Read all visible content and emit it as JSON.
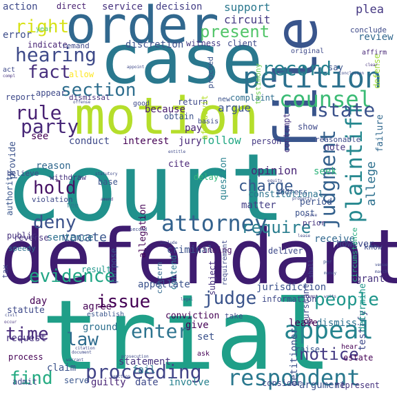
{
  "words": [
    {
      "text": "court",
      "color": "#21918c"
    },
    {
      "text": "defendant",
      "color": "#3e1c70"
    },
    {
      "text": "trial",
      "color": "#1f9f88"
    },
    {
      "text": "motion",
      "color": "#b5de2b"
    },
    {
      "text": "case",
      "color": "#2a788e"
    },
    {
      "text": "order",
      "color": "#31688e"
    },
    {
      "text": "file",
      "color": "#39558c"
    },
    {
      "text": "petition",
      "color": "#2c718e"
    },
    {
      "text": "counsel",
      "color": "#3bbb75"
    },
    {
      "text": "appeal",
      "color": "#25848e"
    },
    {
      "text": "respondent",
      "color": "#2a788e"
    },
    {
      "text": "attorney",
      "color": "#33628d"
    },
    {
      "text": "judgment",
      "color": "#34618d"
    },
    {
      "text": "plaintiff",
      "color": "#24878e"
    },
    {
      "text": "hearing",
      "color": "#3e4a89"
    },
    {
      "text": "record",
      "color": "#26818e"
    },
    {
      "text": "present",
      "color": "#52c569"
    },
    {
      "text": "section",
      "color": "#2e6e8e"
    },
    {
      "text": "fact",
      "color": "#472f7d"
    },
    {
      "text": "rule",
      "color": "#482173"
    },
    {
      "text": "party",
      "color": "#482878"
    },
    {
      "text": "state",
      "color": "#3b528b"
    },
    {
      "text": "evidence",
      "color": "#21a685"
    },
    {
      "text": "issue",
      "color": "#440154"
    },
    {
      "text": "judge",
      "color": "#3a538b"
    },
    {
      "text": "people",
      "color": "#1f968b"
    },
    {
      "text": "proceeding",
      "color": "#414487"
    },
    {
      "text": "time",
      "color": "#472a7a"
    },
    {
      "text": "law",
      "color": "#2f6c8e"
    },
    {
      "text": "find",
      "color": "#25ab82"
    },
    {
      "text": "enter",
      "color": "#2c738e"
    },
    {
      "text": "hold",
      "color": "#471365"
    },
    {
      "text": "charge",
      "color": "#38598c"
    },
    {
      "text": "deny",
      "color": "#3b528b"
    },
    {
      "text": "require",
      "color": "#287d8e"
    },
    {
      "text": "notice",
      "color": "#443a83"
    },
    {
      "text": "right",
      "color": "#d8e219"
    },
    {
      "text": "action",
      "color": "#3e4989"
    },
    {
      "text": "direct",
      "color": "#481f70"
    },
    {
      "text": "service",
      "color": "#46327e"
    },
    {
      "text": "decision",
      "color": "#433e85"
    },
    {
      "text": "support",
      "color": "#2a788e"
    },
    {
      "text": "plea",
      "color": "#453882"
    },
    {
      "text": "circuit",
      "color": "#443983"
    },
    {
      "text": "review",
      "color": "#31688e"
    },
    {
      "text": "conclude",
      "color": "#3e4a89"
    },
    {
      "text": "error",
      "color": "#3d4d8a"
    },
    {
      "text": "year",
      "color": "#52c569"
    },
    {
      "text": "indicate",
      "color": "#482475"
    },
    {
      "text": "remand",
      "color": "#3e4989"
    },
    {
      "text": "discretion",
      "color": "#3b528b"
    },
    {
      "text": "witness",
      "color": "#443983"
    },
    {
      "text": "client",
      "color": "#3e4a89"
    },
    {
      "text": "affirm",
      "color": "#482878"
    },
    {
      "text": "allege",
      "color": "#2d708e"
    },
    {
      "text": "failure",
      "color": "#31688e"
    },
    {
      "text": "argue",
      "color": "#3b528b"
    },
    {
      "text": "because",
      "color": "#481a6c"
    },
    {
      "text": "complaint",
      "color": "#2e6e8e"
    },
    {
      "text": "testimony",
      "color": "#73d056"
    },
    {
      "text": "defense",
      "color": "#a0da39"
    },
    {
      "text": "conduct",
      "color": "#3e4989"
    },
    {
      "text": "interest",
      "color": "#440154"
    },
    {
      "text": "jury",
      "color": "#482878"
    },
    {
      "text": "follow",
      "color": "#22a884"
    },
    {
      "text": "person",
      "color": "#443983"
    },
    {
      "text": "note",
      "color": "#46337f"
    },
    {
      "text": "opinion",
      "color": "#482576"
    },
    {
      "text": "seek",
      "color": "#2fb47c"
    },
    {
      "text": "reason",
      "color": "#31688e"
    },
    {
      "text": "base",
      "color": "#3b528b"
    },
    {
      "text": "question",
      "color": "#26818e"
    },
    {
      "text": "cite",
      "color": "#482475"
    },
    {
      "text": "delay",
      "color": "#32b67a"
    },
    {
      "text": "allegation",
      "color": "#440154"
    },
    {
      "text": "matter",
      "color": "#433e85"
    },
    {
      "text": "vacate",
      "color": "#39568c"
    },
    {
      "text": "criminal",
      "color": "#3b528b"
    },
    {
      "text": "sentence",
      "color": "#2d708e"
    },
    {
      "text": "finding",
      "color": "#481467"
    },
    {
      "text": "receive",
      "color": "#31688e"
    },
    {
      "text": "deliver",
      "color": "#3e4989"
    },
    {
      "text": "however",
      "color": "#3e4989"
    },
    {
      "text": "constitutional",
      "color": "#2c728e"
    },
    {
      "text": "address",
      "color": "#39568c"
    },
    {
      "text": "provide",
      "color": "#3b528b"
    },
    {
      "text": "authority",
      "color": "#39568c"
    },
    {
      "text": "believe",
      "color": "#3e4989"
    },
    {
      "text": "report",
      "color": "#3e4989"
    },
    {
      "text": "appear",
      "color": "#3e4989"
    },
    {
      "text": "dismissal",
      "color": "#46327e"
    },
    {
      "text": "act",
      "color": "#3e4989"
    },
    {
      "text": "allow",
      "color": "#fde725"
    },
    {
      "text": "see",
      "color": "#440154"
    },
    {
      "text": "withdraw",
      "color": "#46327e"
    },
    {
      "text": "violation",
      "color": "#3e4989"
    },
    {
      "text": "fee",
      "color": "#2a788e"
    },
    {
      "text": "reverse",
      "color": "#46327e"
    },
    {
      "text": "speedy",
      "color": "#2d708e"
    },
    {
      "text": "public",
      "color": "#46327e"
    },
    {
      "text": "tax",
      "color": "#3e4989"
    },
    {
      "text": "result",
      "color": "#1f968b"
    },
    {
      "text": "purpose",
      "color": "#39568c"
    },
    {
      "text": "concern",
      "color": "#31688e"
    },
    {
      "text": "contend",
      "color": "#2a788e"
    },
    {
      "text": "subject",
      "color": "#46327e"
    },
    {
      "text": "requirement",
      "color": "#3e4989"
    },
    {
      "text": "jurisdiction",
      "color": "#3b528b"
    },
    {
      "text": "information",
      "color": "#3e4989"
    },
    {
      "text": "grant",
      "color": "#46327e"
    },
    {
      "text": "know",
      "color": "#3e4989"
    },
    {
      "text": "circumstance",
      "color": "#27ad81"
    },
    {
      "text": "appellate",
      "color": "#3b528b"
    },
    {
      "text": "agree",
      "color": "#440154"
    },
    {
      "text": "day",
      "color": "#440154"
    },
    {
      "text": "statute",
      "color": "#3e4989"
    },
    {
      "text": "establish",
      "color": "#39568c"
    },
    {
      "text": "conviction",
      "color": "#440154"
    },
    {
      "text": "take",
      "color": "#3e4989"
    },
    {
      "text": "leave",
      "color": "#440154"
    },
    {
      "text": "dismiss",
      "color": "#2d708e"
    },
    {
      "text": "testify",
      "color": "#3e4989"
    },
    {
      "text": "petitioner",
      "color": "#3b528b"
    },
    {
      "text": "pursuant",
      "color": "#3e4989"
    },
    {
      "text": "determine",
      "color": "#1f968b"
    },
    {
      "text": "ground",
      "color": "#2d708e"
    },
    {
      "text": "give",
      "color": "#440154"
    },
    {
      "text": "statement",
      "color": "#46327e"
    },
    {
      "text": "request",
      "color": "#46327e"
    },
    {
      "text": "set",
      "color": "#3b528b"
    },
    {
      "text": "fail",
      "color": "#2a788e"
    },
    {
      "text": "raise",
      "color": "#39568c"
    },
    {
      "text": "hear",
      "color": "#440154"
    },
    {
      "text": "estate",
      "color": "#440154"
    },
    {
      "text": "process",
      "color": "#440154"
    },
    {
      "text": "claim",
      "color": "#3b528b"
    },
    {
      "text": "guilty",
      "color": "#482475"
    },
    {
      "text": "date",
      "color": "#3e4989"
    },
    {
      "text": "involve",
      "color": "#26818e"
    },
    {
      "text": "consider",
      "color": "#3e4989"
    },
    {
      "text": "argument",
      "color": "#3b528b"
    },
    {
      "text": "represent",
      "color": "#46327e"
    },
    {
      "text": "serve",
      "color": "#39568c"
    },
    {
      "text": "admit",
      "color": "#3e4989"
    },
    {
      "text": "obtain",
      "color": "#3b528b"
    },
    {
      "text": "pay",
      "color": "#482475"
    },
    {
      "text": "return",
      "color": "#3e4989"
    },
    {
      "text": "new",
      "color": "#3b528b"
    },
    {
      "text": "affidavit",
      "color": "#b5de2b"
    },
    {
      "text": "show",
      "color": "#3e4989"
    },
    {
      "text": "contempt",
      "color": "#46327e"
    },
    {
      "text": "reasonable",
      "color": "#3e4989"
    },
    {
      "text": "period",
      "color": "#3b528b"
    },
    {
      "text": "prior",
      "color": "#46327e"
    },
    {
      "text": "post",
      "color": "#3b528b"
    },
    {
      "text": "proceed",
      "color": "#3b528b"
    },
    {
      "text": "original",
      "color": "#3e4989"
    },
    {
      "text": "good",
      "color": "#3e4989"
    },
    {
      "text": "basis",
      "color": "#3e4989"
    },
    {
      "text": "say",
      "color": "#3b528b"
    },
    {
      "text": "ch",
      "color": "#440154"
    },
    {
      "text": "offense",
      "color": "#3e4989"
    },
    {
      "text": "statutory",
      "color": "#3e4989"
    },
    {
      "text": "appoint",
      "color": "#3e4989"
    },
    {
      "text": "second",
      "color": "#3e4989"
    },
    {
      "text": "entitle",
      "color": "#3e4989"
    },
    {
      "text": "amend",
      "color": "#46327e"
    },
    {
      "text": "shall",
      "color": "#3e4989"
    },
    {
      "text": "per",
      "color": "#3b528b"
    },
    {
      "text": "money",
      "color": "#3b528b"
    },
    {
      "text": "lack",
      "color": "#3b528b"
    },
    {
      "text": "venue",
      "color": "#3e4989"
    },
    {
      "text": "march",
      "color": "#3e4989"
    },
    {
      "text": "attempt",
      "color": "#46327e"
    },
    {
      "text": "writs",
      "color": "#3e4989"
    },
    {
      "text": "compl",
      "color": "#46327e"
    },
    {
      "text": "clear",
      "color": "#46327e"
    },
    {
      "text": "conclusion",
      "color": "#3e4989"
    },
    {
      "text": "citation",
      "color": "#3e4989"
    },
    {
      "text": "include",
      "color": "#3e4989"
    },
    {
      "text": "document",
      "color": "#3e4989"
    },
    {
      "text": "warrant",
      "color": "#3e4989"
    },
    {
      "text": "sanction",
      "color": "#3e4989"
    },
    {
      "text": "legal",
      "color": "#3e4989"
    },
    {
      "text": "prosecution",
      "color": "#3e4989"
    },
    {
      "text": "ask",
      "color": "#440154"
    },
    {
      "text": "occur",
      "color": "#46327e"
    },
    {
      "text": "civil",
      "color": "#3e4989"
    },
    {
      "text": "place",
      "color": "#3e4989"
    },
    {
      "text": "property",
      "color": "#3e4989"
    },
    {
      "text": "equity",
      "color": "#3e4989"
    },
    {
      "text": "lease",
      "color": "#3e4989"
    }
  ]
}
